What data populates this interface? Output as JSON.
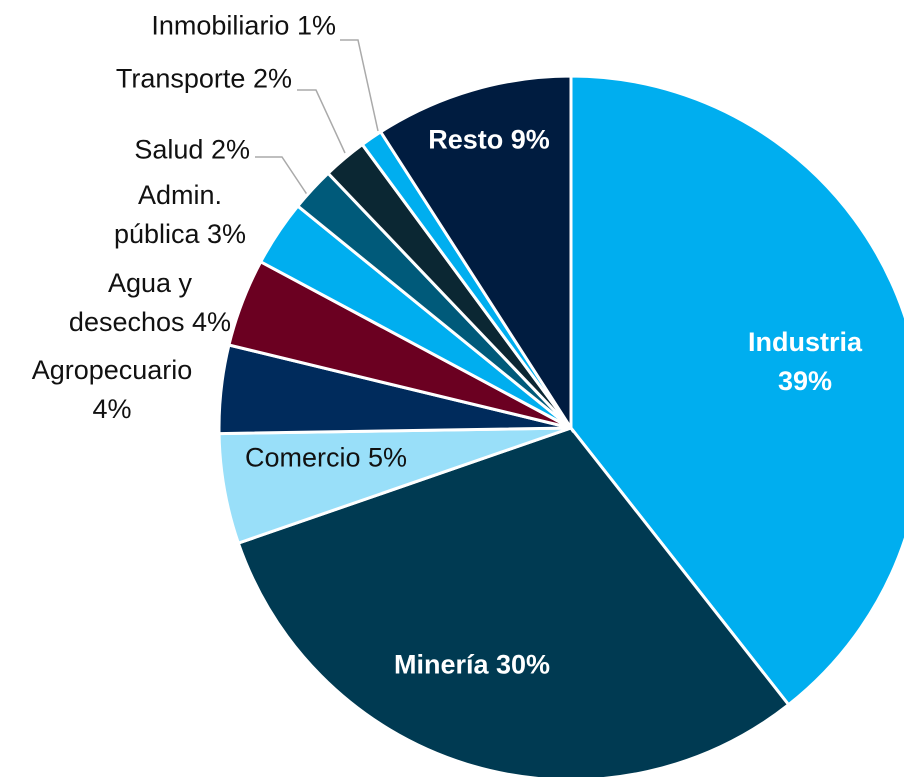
{
  "chart_data": {
    "type": "pie",
    "categories": [
      "Industria",
      "Minería",
      "Comercio",
      "Agropecuario",
      "Agua y\ndesechos",
      "Admin.\npública",
      "Salud",
      "Transporte",
      "Inmobiliario",
      "Resto"
    ],
    "values": [
      39,
      30,
      5,
      4,
      4,
      3,
      2,
      2,
      1,
      9
    ],
    "value_labels": [
      "39%",
      "30%",
      "5%",
      "4%",
      "4%",
      "3%",
      "2%",
      "2%",
      "1%",
      "9%"
    ],
    "colors": [
      "#00aeef",
      "#003a52",
      "#99dff9",
      "#002b5c",
      "#6b0021",
      "#00aeef",
      "#005a7a",
      "#0b2733",
      "#00aeef",
      "#001c40"
    ]
  }
}
